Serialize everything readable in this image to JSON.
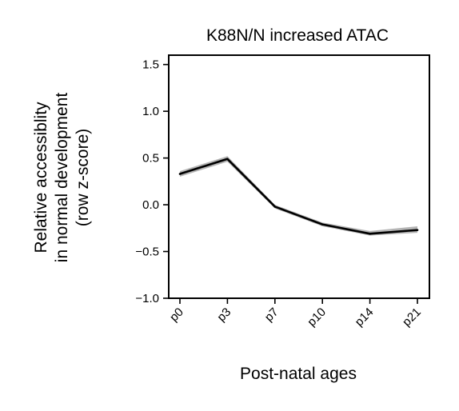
{
  "chart_data": {
    "type": "line",
    "title": "K88N/N increased ATAC",
    "xlabel": "Post-natal ages",
    "ylabel_lines": [
      "Relative accessiblity",
      "in normal development",
      "(row z-score)"
    ],
    "categories": [
      "p0",
      "p3",
      "p7",
      "p10",
      "p14",
      "p21"
    ],
    "ylim": [
      -1.0,
      1.6
    ],
    "yticks": [
      -1.0,
      -0.5,
      0.0,
      0.5,
      1.0,
      1.5
    ],
    "ytick_labels": [
      "−1.0",
      "−0.5",
      "0.0",
      "0.5",
      "1.0",
      "1.5"
    ],
    "series": [
      {
        "values": [
          0.33,
          0.49,
          -0.02,
          -0.21,
          -0.31,
          -0.27
        ],
        "band_lower": [
          0.3,
          0.46,
          -0.04,
          -0.23,
          -0.33,
          -0.3
        ],
        "band_upper": [
          0.36,
          0.52,
          0.0,
          -0.19,
          -0.28,
          -0.23
        ],
        "color": "#000000",
        "band_color": "#b5b5b5"
      }
    ],
    "grid": false,
    "legend": "none"
  }
}
